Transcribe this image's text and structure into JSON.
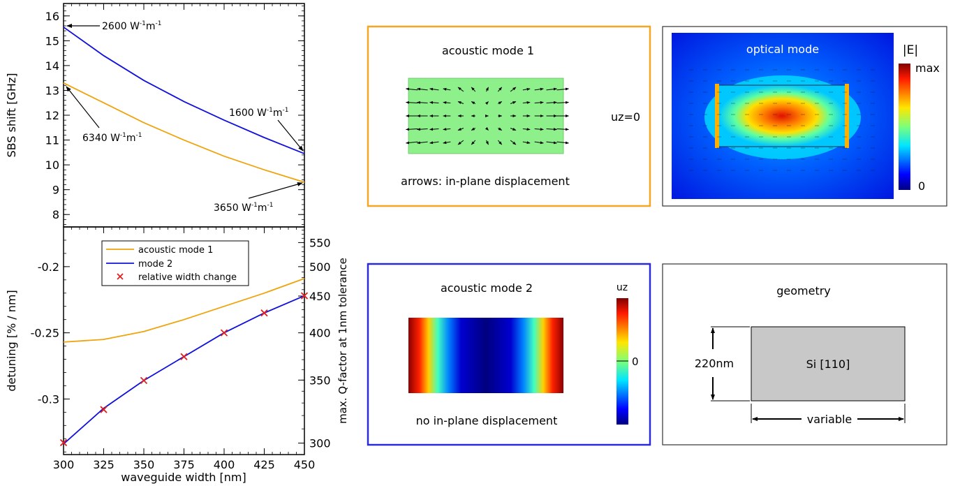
{
  "chart_data": [
    {
      "type": "line",
      "ylabel": "SBS shift [GHz]",
      "ylim": [
        7.5,
        16.5
      ],
      "xlim": [
        300,
        450
      ],
      "yticks": [
        8,
        9,
        10,
        11,
        12,
        13,
        14,
        15,
        16
      ],
      "series": [
        {
          "color": "#f0a30a",
          "x": [
            300,
            325,
            350,
            375,
            400,
            425,
            450
          ],
          "y": [
            13.3,
            12.5,
            11.7,
            11.0,
            10.35,
            9.8,
            9.3
          ]
        },
        {
          "color": "#1010dd",
          "x": [
            300,
            325,
            350,
            375,
            400,
            425,
            450
          ],
          "y": [
            15.55,
            14.4,
            13.4,
            12.55,
            11.8,
            11.1,
            10.45
          ]
        }
      ],
      "annotations": [
        {
          "pre": "2600 W",
          "post": "m"
        },
        {
          "pre": "6340 W",
          "post": "m"
        },
        {
          "pre": "1600 W",
          "post": "m"
        },
        {
          "pre": "3650 W",
          "post": "m"
        }
      ],
      "superscript": "-1"
    },
    {
      "type": "line",
      "xlabel": "waveguide width [nm]",
      "ylabel": "detuning [% / nm]",
      "y2label": "max. Q-factor at 1nm tolerance",
      "xlim": [
        300,
        450
      ],
      "ylim": [
        -0.342,
        -0.17
      ],
      "xticks": [
        300,
        325,
        350,
        375,
        400,
        425,
        450
      ],
      "yticks": [
        -0.3,
        -0.25,
        -0.2
      ],
      "y2ticks": [
        300,
        350,
        400,
        450,
        500,
        550
      ],
      "legend": {
        "position": "top-left",
        "entries": [
          "acoustic mode 1",
          "mode 2",
          "relative width change"
        ]
      },
      "series": [
        {
          "name": "acoustic mode 1",
          "color": "#f0a30a",
          "x": [
            300,
            325,
            350,
            375,
            400,
            425,
            450
          ],
          "y": [
            -0.257,
            -0.255,
            -0.249,
            -0.24,
            -0.23,
            -0.22,
            -0.209
          ]
        },
        {
          "name": "mode 2",
          "color": "#1010dd",
          "x": [
            300,
            325,
            350,
            375,
            400,
            425,
            450
          ],
          "y": [
            -0.334,
            -0.307,
            -0.286,
            -0.268,
            -0.25,
            -0.235,
            -0.222
          ]
        },
        {
          "name": "relative width change",
          "color": "#e02020",
          "marker": "x",
          "x": [
            300,
            325,
            350,
            375,
            400,
            425,
            450
          ],
          "y": [
            -0.333,
            -0.308,
            -0.286,
            -0.268,
            -0.25,
            -0.235,
            -0.222
          ]
        }
      ]
    }
  ],
  "panels": {
    "acoustic1": {
      "title": "acoustic mode 1",
      "caption": "arrows: in-plane displacement",
      "side": "uz=0",
      "border": "#f5a623"
    },
    "optical": {
      "title": "optical mode",
      "scale_title": "|E|",
      "scale_max": "max",
      "scale_min": "0"
    },
    "acoustic2": {
      "title": "acoustic mode 2",
      "caption": "no in-plane displacement",
      "scale_title": "uz",
      "scale_zero": "0",
      "border": "#2a2ad6"
    },
    "geometry": {
      "title": "geometry",
      "height": "220nm",
      "material": "Si [110]",
      "width": "variable"
    }
  }
}
